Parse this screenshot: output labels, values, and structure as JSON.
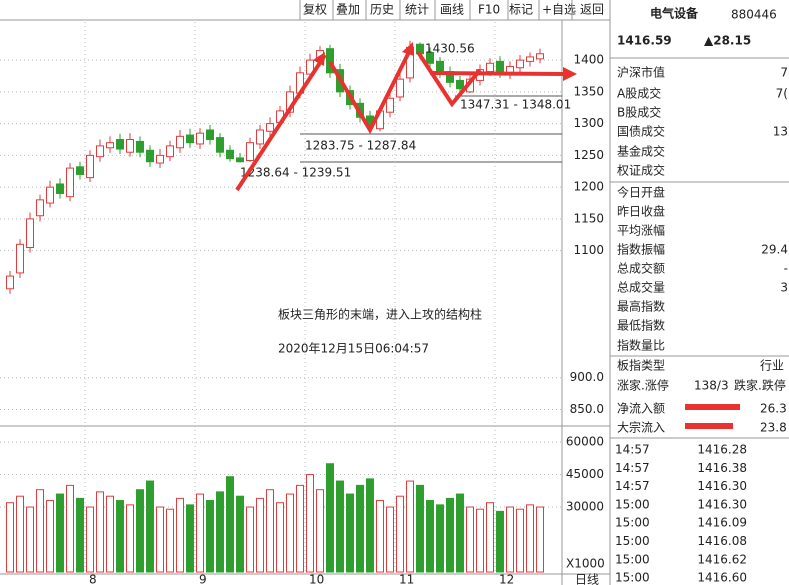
{
  "toolbar": [
    "复权",
    "叠加",
    "历史",
    "统计",
    "画线",
    "F10",
    "标记",
    "+自选",
    "返回"
  ],
  "chart_data": [
    {
      "type": "candlestick",
      "open": [
        1040,
        1065,
        1105,
        1155,
        1175,
        1205,
        1185,
        1232,
        1215,
        1248,
        1262,
        1275,
        1255,
        1272,
        1258,
        1238,
        1248,
        1262,
        1282,
        1268,
        1290,
        1278,
        1258,
        1246,
        1242,
        1268,
        1288,
        1302,
        1318,
        1348,
        1378,
        1398,
        1418,
        1385,
        1352,
        1332,
        1312,
        1292,
        1318,
        1342,
        1372,
        1425,
        1412,
        1398,
        1382,
        1368,
        1350,
        1368,
        1382,
        1398,
        1378,
        1388,
        1398,
        1402
      ],
      "high": [
        1068,
        1118,
        1160,
        1188,
        1210,
        1214,
        1238,
        1240,
        1258,
        1275,
        1280,
        1284,
        1285,
        1280,
        1266,
        1260,
        1273,
        1290,
        1292,
        1293,
        1298,
        1285,
        1266,
        1254,
        1278,
        1298,
        1310,
        1328,
        1360,
        1390,
        1410,
        1422,
        1424,
        1394,
        1360,
        1340,
        1320,
        1328,
        1348,
        1380,
        1430.56,
        1428,
        1420,
        1405,
        1390,
        1375,
        1378,
        1393,
        1403,
        1406,
        1398,
        1408,
        1412,
        1418
      ],
      "low": [
        1032,
        1057,
        1097,
        1146,
        1168,
        1182,
        1178,
        1212,
        1208,
        1240,
        1254,
        1252,
        1248,
        1247,
        1232,
        1230,
        1241,
        1254,
        1262,
        1260,
        1267,
        1247,
        1240,
        1238.64,
        1239.51,
        1260,
        1280,
        1295,
        1310,
        1340,
        1370,
        1390,
        1372,
        1342,
        1322,
        1302,
        1283.75,
        1287.84,
        1310,
        1335,
        1365,
        1402,
        1388,
        1372,
        1357,
        1347.31,
        1348.01,
        1360,
        1375,
        1372,
        1370,
        1380,
        1390,
        1395
      ],
      "close": [
        1060,
        1110,
        1150,
        1180,
        1200,
        1190,
        1230,
        1220,
        1250,
        1265,
        1270,
        1260,
        1275,
        1255,
        1240,
        1250,
        1265,
        1280,
        1270,
        1285,
        1275,
        1255,
        1245,
        1240,
        1270,
        1290,
        1300,
        1320,
        1350,
        1380,
        1400,
        1415,
        1380,
        1350,
        1330,
        1310,
        1295,
        1320,
        1340,
        1370,
        1420,
        1410,
        1395,
        1380,
        1365,
        1355,
        1370,
        1385,
        1395,
        1380,
        1390,
        1400,
        1405,
        1410
      ],
      "ylim": [
        835,
        1460
      ],
      "yticks": [
        1400,
        1350,
        1300,
        1250,
        1200,
        1150,
        1100,
        {
          "value": 900,
          "label": "900.0"
        },
        {
          "value": 850,
          "label": "850.0"
        }
      ],
      "xticks": [
        {
          "value": 8,
          "label": "8"
        },
        {
          "value": 19,
          "label": "9"
        },
        {
          "value": 30,
          "label": "10"
        },
        {
          "value": 39,
          "label": "11"
        },
        {
          "value": 49,
          "label": "12"
        }
      ],
      "up_color": "#e03c3c",
      "down_color": "#2e9e2e",
      "grid": true,
      "annotations": [
        "1430.56",
        "1347.31 - 1348.01",
        "1283.75 - 1287.84",
        "1238.64 - 1239.51"
      ]
    },
    {
      "type": "bar",
      "values": [
        32000,
        35000,
        30000,
        38000,
        33000,
        36000,
        40000,
        34000,
        30000,
        37000,
        35000,
        33000,
        31000,
        38000,
        42000,
        30000,
        29000,
        34000,
        31000,
        36000,
        33000,
        37000,
        44000,
        35000,
        30000,
        34000,
        38000,
        32000,
        36000,
        40000,
        45000,
        38000,
        50000,
        42000,
        36000,
        40000,
        43000,
        33000,
        30000,
        35000,
        42000,
        40000,
        33000,
        31000,
        34000,
        36000,
        30000,
        29000,
        32000,
        28000,
        30000,
        29000,
        31000,
        30000
      ],
      "ylim": [
        0,
        66500
      ],
      "yticks": [
        30000,
        45000,
        60000
      ],
      "unit_label": "X1000",
      "x_label": "日线"
    }
  ],
  "overlay_text": [
    "板块三角形的末端，进入上攻的结构柱",
    "2020年12月15日06:04:57"
  ],
  "quote": {
    "name": "电气设备",
    "code": "880446",
    "price": "1416.59",
    "change": "▲28.15"
  },
  "stats": [
    {
      "label": "沪深市值",
      "value": "7"
    },
    {
      "label": "A股成交",
      "value": "7("
    },
    {
      "label": "B股成交"
    },
    {
      "label": "国债成交",
      "value": "13"
    },
    {
      "label": "基金成交"
    },
    {
      "label": "权证成交"
    },
    {
      "label": "今日开盘"
    },
    {
      "label": "昨日收盘"
    },
    {
      "label": "平均涨幅"
    },
    {
      "label": "指数振幅",
      "value": "29.4"
    },
    {
      "label": "总成交额",
      "value": "-"
    },
    {
      "label": "总成交量",
      "value": "3"
    },
    {
      "label": "最高指数"
    },
    {
      "label": "最低指数"
    },
    {
      "label": "指数量比"
    }
  ],
  "sector": {
    "label": "板指类型",
    "value": "行业"
  },
  "breadth": {
    "label": "涨家.涨停",
    "value": "138/3",
    "label2": "跌家.跌停"
  },
  "flows": [
    {
      "label": "净流入额",
      "value": "26.3"
    },
    {
      "label": "大宗流入",
      "value": "23.8"
    }
  ],
  "ticks": [
    [
      "14:57",
      "1416.28"
    ],
    [
      "14:57",
      "1416.38"
    ],
    [
      "14:57",
      "1416.30"
    ],
    [
      "15:00",
      "1416.30"
    ],
    [
      "15:00",
      "1416.09"
    ],
    [
      "15:00",
      "1416.08"
    ],
    [
      "15:00",
      "1416.62"
    ],
    [
      "15:00",
      "1416.60"
    ]
  ]
}
